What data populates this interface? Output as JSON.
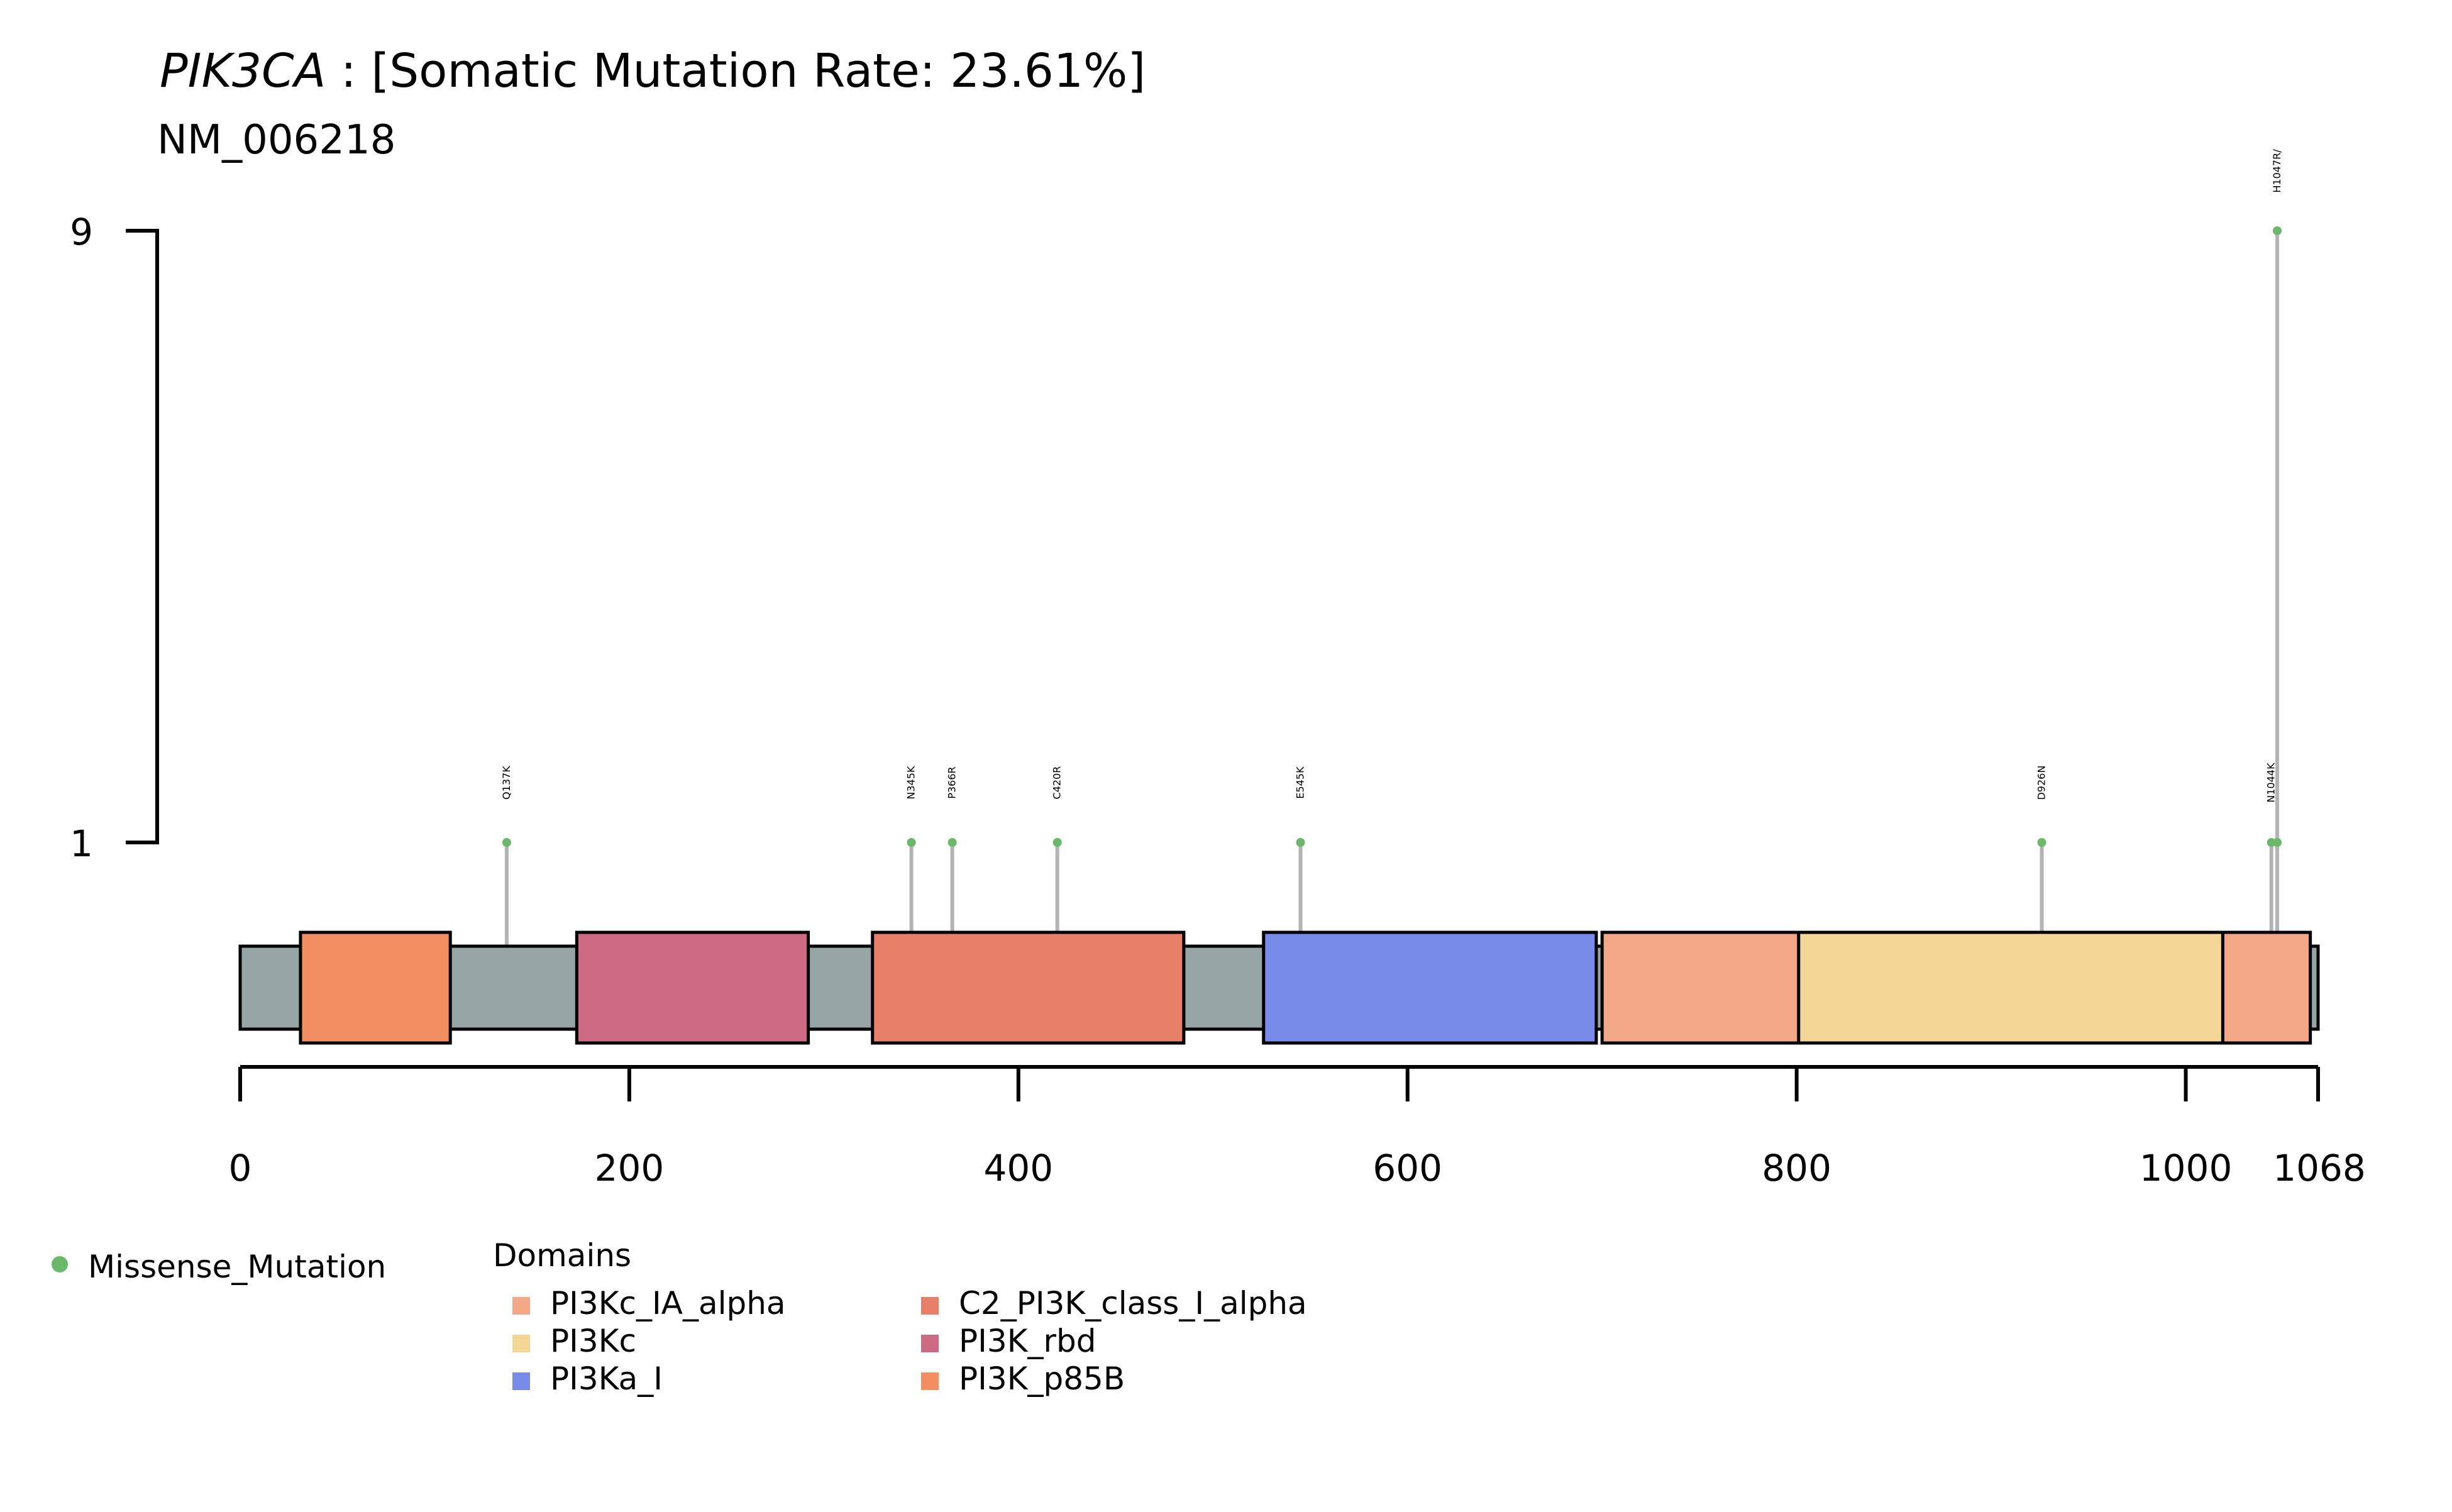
{
  "chart_data": {
    "type": "lollipop",
    "title_gene": "PIK3CA",
    "title_rest": " : [Somatic Mutation Rate: 23.61%]",
    "subtitle": "NM_006218",
    "protein_length": 1068,
    "y_ticks": [
      1,
      9
    ],
    "x_ticks": [
      0,
      200,
      400,
      600,
      800,
      1000,
      1068
    ],
    "x_range": [
      0,
      1068
    ],
    "colors": {
      "backbone": "#95a5a6",
      "lollipop_stem": "#b3b3b3",
      "missense": "#6ab86a",
      "axis": "#000000"
    },
    "domains": [
      {
        "name": "PI3K_p85B",
        "start": 31,
        "end": 108,
        "color": "#f28e62"
      },
      {
        "name": "PI3K_rbd",
        "start": 173,
        "end": 292,
        "color": "#cf6a84"
      },
      {
        "name": "C2_PI3K_class_I_alpha",
        "start": 325,
        "end": 485,
        "color": "#e77f69"
      },
      {
        "name": "PI3Ka_I",
        "start": 526,
        "end": 697,
        "color": "#788be8"
      },
      {
        "name": "PI3Kc_IA_alpha",
        "start": 700,
        "end": 1064,
        "color": "#f2a886"
      },
      {
        "name": "PI3Kc",
        "start": 801,
        "end": 1019,
        "color": "#f5d795"
      }
    ],
    "mutations": [
      {
        "label": "Q137K",
        "position": 137,
        "count": 1,
        "type": "Missense_Mutation"
      },
      {
        "label": "N345K",
        "position": 345,
        "count": 1,
        "type": "Missense_Mutation"
      },
      {
        "label": "P366R",
        "position": 366,
        "count": 1,
        "type": "Missense_Mutation"
      },
      {
        "label": "C420R",
        "position": 420,
        "count": 1,
        "type": "Missense_Mutation"
      },
      {
        "label": "E545K",
        "position": 545,
        "count": 1,
        "type": "Missense_Mutation"
      },
      {
        "label": "D926N",
        "position": 926,
        "count": 1,
        "type": "Missense_Mutation"
      },
      {
        "label": "N1044K",
        "position": 1044,
        "count": 1,
        "type": "Missense_Mutation"
      },
      {
        "label": "H1047R/",
        "position": 1047,
        "count": 9,
        "type": "Missense_Mutation"
      },
      {
        "label": "",
        "position": 1047,
        "count": 1,
        "type": "Missense_Mutation"
      }
    ],
    "legend": {
      "mutation_label": "Missense_Mutation",
      "domains_title": "Domains",
      "domain_entries": [
        {
          "name": "PI3Kc_IA_alpha",
          "color": "#f2a886"
        },
        {
          "name": "PI3Kc",
          "color": "#f5d795"
        },
        {
          "name": "PI3Ka_I",
          "color": "#788be8"
        },
        {
          "name": "C2_PI3K_class_I_alpha",
          "color": "#e77f69"
        },
        {
          "name": "PI3K_rbd",
          "color": "#cf6a84"
        },
        {
          "name": "PI3K_p85B",
          "color": "#f28e62"
        }
      ]
    }
  }
}
